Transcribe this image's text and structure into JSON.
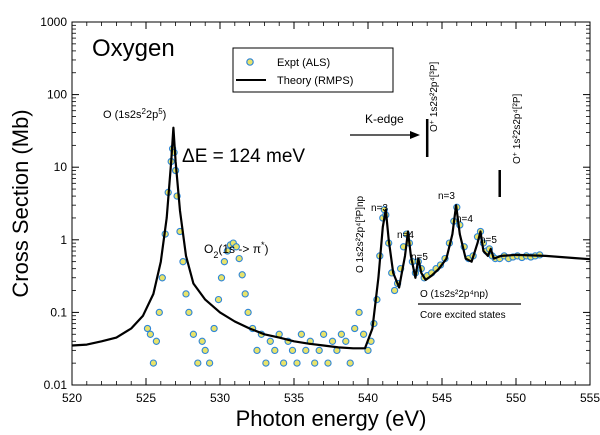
{
  "chart_data": {
    "type": "scatter",
    "title": "Oxygen",
    "xlabel": "Photon energy (eV)",
    "ylabel": "Cross Section (Mb)",
    "xlim": [
      520,
      555
    ],
    "ylim": [
      0.01,
      1000
    ],
    "y_scale": "log",
    "grid": false,
    "legend_position": "top-center",
    "x_ticks": [
      520,
      525,
      530,
      535,
      540,
      545,
      550,
      555
    ],
    "y_ticks": [
      {
        "value": 0.01,
        "label": "0.01"
      },
      {
        "value": 0.1,
        "label": "0.1"
      },
      {
        "value": 1,
        "label": "1"
      },
      {
        "value": 10,
        "label": "10"
      },
      {
        "value": 100,
        "label": "100"
      },
      {
        "value": 1000,
        "label": "1000"
      }
    ],
    "series": [
      {
        "name": "Expt (ALS)",
        "kind": "markers",
        "marker_fill": "#e8e36a",
        "marker_edge": "#2f86d6",
        "points": [
          [
            525.1,
            0.06
          ],
          [
            525.3,
            0.05
          ],
          [
            525.5,
            0.02
          ],
          [
            525.7,
            0.04
          ],
          [
            525.9,
            0.1
          ],
          [
            526.1,
            0.3
          ],
          [
            526.3,
            1.2
          ],
          [
            526.5,
            4.5
          ],
          [
            526.7,
            12
          ],
          [
            526.8,
            18
          ],
          [
            526.9,
            16
          ],
          [
            527.0,
            9
          ],
          [
            527.1,
            4
          ],
          [
            527.3,
            1.3
          ],
          [
            527.5,
            0.5
          ],
          [
            527.7,
            0.18
          ],
          [
            527.9,
            0.1
          ],
          [
            528.2,
            0.05
          ],
          [
            528.5,
            0.02
          ],
          [
            528.8,
            0.04
          ],
          [
            529.0,
            0.03
          ],
          [
            529.3,
            0.02
          ],
          [
            529.6,
            0.06
          ],
          [
            529.9,
            0.15
          ],
          [
            530.1,
            0.3
          ],
          [
            530.3,
            0.5
          ],
          [
            530.5,
            0.7
          ],
          [
            530.7,
            0.85
          ],
          [
            530.9,
            0.9
          ],
          [
            531.1,
            0.8
          ],
          [
            531.3,
            0.55
          ],
          [
            531.5,
            0.33
          ],
          [
            531.7,
            0.18
          ],
          [
            531.9,
            0.1
          ],
          [
            532.2,
            0.06
          ],
          [
            532.5,
            0.03
          ],
          [
            532.8,
            0.05
          ],
          [
            533.1,
            0.02
          ],
          [
            533.4,
            0.04
          ],
          [
            533.7,
            0.03
          ],
          [
            534.0,
            0.05
          ],
          [
            534.3,
            0.02
          ],
          [
            534.6,
            0.04
          ],
          [
            534.9,
            0.03
          ],
          [
            535.2,
            0.02
          ],
          [
            535.5,
            0.05
          ],
          [
            535.8,
            0.03
          ],
          [
            536.1,
            0.04
          ],
          [
            536.4,
            0.02
          ],
          [
            536.7,
            0.03
          ],
          [
            537.0,
            0.05
          ],
          [
            537.3,
            0.02
          ],
          [
            537.6,
            0.04
          ],
          [
            537.9,
            0.03
          ],
          [
            538.2,
            0.05
          ],
          [
            538.5,
            0.04
          ],
          [
            538.8,
            0.02
          ],
          [
            539.1,
            0.06
          ],
          [
            539.4,
            0.1
          ],
          [
            539.7,
            0.05
          ],
          [
            540.0,
            0.03
          ],
          [
            540.2,
            0.04
          ],
          [
            540.4,
            0.07
          ],
          [
            540.6,
            0.15
          ],
          [
            540.8,
            0.6
          ],
          [
            541.0,
            2.0
          ],
          [
            541.1,
            2.6
          ],
          [
            541.2,
            2.2
          ],
          [
            541.4,
            0.9
          ],
          [
            541.6,
            0.35
          ],
          [
            541.8,
            0.2
          ],
          [
            542.0,
            0.25
          ],
          [
            542.2,
            0.4
          ],
          [
            542.4,
            0.8
          ],
          [
            542.6,
            1.2
          ],
          [
            542.8,
            0.9
          ],
          [
            543.0,
            0.5
          ],
          [
            543.2,
            0.35
          ],
          [
            543.4,
            0.5
          ],
          [
            543.6,
            0.4
          ],
          [
            543.8,
            0.3
          ],
          [
            544.0,
            0.32
          ],
          [
            544.3,
            0.35
          ],
          [
            544.6,
            0.4
          ],
          [
            544.9,
            0.45
          ],
          [
            545.2,
            0.55
          ],
          [
            545.5,
            0.9
          ],
          [
            545.8,
            1.8
          ],
          [
            546.0,
            2.8
          ],
          [
            546.2,
            1.6
          ],
          [
            546.5,
            0.8
          ],
          [
            546.8,
            0.55
          ],
          [
            547.1,
            0.6
          ],
          [
            547.4,
            1.1
          ],
          [
            547.6,
            1.3
          ],
          [
            547.8,
            0.9
          ],
          [
            548.0,
            0.7
          ],
          [
            548.2,
            0.75
          ],
          [
            548.4,
            0.6
          ],
          [
            548.6,
            0.55
          ],
          [
            548.9,
            0.55
          ],
          [
            549.2,
            0.6
          ],
          [
            549.5,
            0.55
          ],
          [
            549.8,
            0.58
          ],
          [
            550.1,
            0.6
          ],
          [
            550.4,
            0.57
          ],
          [
            550.7,
            0.6
          ],
          [
            551.0,
            0.58
          ],
          [
            551.3,
            0.6
          ],
          [
            551.6,
            0.62
          ]
        ]
      },
      {
        "name": "Theory (RMPS)",
        "kind": "line",
        "color": "#000000",
        "points": [
          [
            520,
            0.035
          ],
          [
            521,
            0.036
          ],
          [
            522,
            0.04
          ],
          [
            523,
            0.045
          ],
          [
            524,
            0.06
          ],
          [
            524.8,
            0.09
          ],
          [
            525.5,
            0.18
          ],
          [
            526.0,
            0.5
          ],
          [
            526.4,
            2.0
          ],
          [
            526.7,
            12
          ],
          [
            526.85,
            35
          ],
          [
            527.0,
            12
          ],
          [
            527.3,
            2.5
          ],
          [
            527.7,
            0.6
          ],
          [
            528.2,
            0.25
          ],
          [
            529,
            0.15
          ],
          [
            530,
            0.1
          ],
          [
            531,
            0.075
          ],
          [
            532,
            0.06
          ],
          [
            533,
            0.05
          ],
          [
            534,
            0.045
          ],
          [
            535,
            0.04
          ],
          [
            536,
            0.037
          ],
          [
            537,
            0.035
          ],
          [
            538,
            0.033
          ],
          [
            539,
            0.032
          ],
          [
            539.8,
            0.032
          ],
          [
            540.3,
            0.06
          ],
          [
            540.7,
            0.3
          ],
          [
            541.0,
            1.5
          ],
          [
            541.2,
            2.6
          ],
          [
            541.4,
            1.0
          ],
          [
            541.7,
            0.35
          ],
          [
            542.1,
            0.22
          ],
          [
            542.5,
            0.6
          ],
          [
            542.7,
            1.3
          ],
          [
            542.9,
            0.6
          ],
          [
            543.2,
            0.3
          ],
          [
            543.4,
            0.55
          ],
          [
            543.6,
            0.35
          ],
          [
            543.9,
            0.28
          ],
          [
            544.3,
            0.32
          ],
          [
            544.8,
            0.4
          ],
          [
            545.3,
            0.55
          ],
          [
            545.7,
            1.2
          ],
          [
            545.95,
            3.0
          ],
          [
            546.2,
            1.2
          ],
          [
            546.6,
            0.55
          ],
          [
            547.0,
            0.5
          ],
          [
            547.4,
            0.9
          ],
          [
            547.6,
            1.3
          ],
          [
            547.8,
            0.7
          ],
          [
            548.1,
            0.6
          ],
          [
            548.3,
            0.75
          ],
          [
            548.5,
            0.55
          ],
          [
            549,
            0.6
          ],
          [
            550,
            0.62
          ],
          [
            551,
            0.61
          ],
          [
            552,
            0.6
          ],
          [
            553,
            0.58
          ],
          [
            554,
            0.56
          ],
          [
            555,
            0.54
          ]
        ]
      }
    ],
    "annotations": {
      "species": "Oxygen",
      "o_1s2s2p5": {
        "main": "O (1s2s",
        "sup1": "2",
        "mid": "2p",
        "sup2": "5",
        "end": ")"
      },
      "delta_e": "ΔE = 124 meV",
      "o2_label": {
        "main": "O",
        "sub": "2",
        "rest": "(1s -> π",
        "sup": "*",
        "end": ")"
      },
      "k_edge": "K-edge",
      "o_plus_1": {
        "main": "O",
        "sup": "+",
        "rest": "1s2s²2p⁴[³P]"
      },
      "o_plus_2": {
        "main": "O",
        "sup": "+",
        "rest": "1s²2s2p⁴[²P]"
      },
      "rydberg_series": "O 1s2s²2p⁴[³P]np",
      "n3_a": "n=3",
      "n4_a": "n=4",
      "n5_a": "n=5",
      "n3_b": "n=3",
      "n4_b": "n=4",
      "n5_b": "n=5",
      "core_label": "O (1s2s²2p⁴np)",
      "core_states": "Core excited states",
      "ionization_markers": [
        544.0,
        548.9
      ]
    }
  }
}
